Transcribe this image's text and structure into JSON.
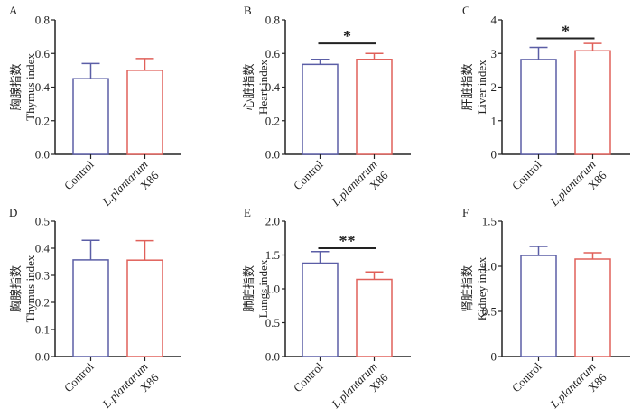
{
  "figure": {
    "colors": {
      "control": "#5b5ea6",
      "treatment": "#e0605a",
      "axis": "#222222",
      "sig_bar": "#222222"
    }
  },
  "chart_data": [
    {
      "panel": "A",
      "type": "bar",
      "ylabel_cn": "胸腺指数",
      "ylabel": "Thymus index",
      "categories": [
        "Control",
        "L.plantarum X86"
      ],
      "category_labels": [
        {
          "line1": "Control",
          "line2": ""
        },
        {
          "line1": "L.plantarum",
          "line2": "X86"
        }
      ],
      "values": [
        0.45,
        0.5
      ],
      "errors": [
        0.09,
        0.07
      ],
      "ylim": [
        0,
        0.8
      ],
      "yticks": [
        0.0,
        0.2,
        0.4,
        0.6,
        0.8
      ],
      "ytick_labels": [
        "0.0",
        "0.2",
        "0.4",
        "0.6",
        "0.8"
      ],
      "significance": null
    },
    {
      "panel": "B",
      "type": "bar",
      "ylabel_cn": "心脏指数",
      "ylabel": "Heart index",
      "categories": [
        "Control",
        "L.plantarum X86"
      ],
      "category_labels": [
        {
          "line1": "Control",
          "line2": ""
        },
        {
          "line1": "L.plantarum",
          "line2": "X86"
        }
      ],
      "values": [
        0.535,
        0.565
      ],
      "errors": [
        0.03,
        0.035
      ],
      "ylim": [
        0,
        0.8
      ],
      "yticks": [
        0.0,
        0.2,
        0.4,
        0.6,
        0.8
      ],
      "ytick_labels": [
        "0.0",
        "0.2",
        "0.4",
        "0.6",
        "0.8"
      ],
      "significance": {
        "label": "*",
        "y": 0.66
      }
    },
    {
      "panel": "C",
      "type": "bar",
      "ylabel_cn": "肝脏指数",
      "ylabel": "Liver index",
      "categories": [
        "Control",
        "L.plantarum X86"
      ],
      "category_labels": [
        {
          "line1": "Control",
          "line2": ""
        },
        {
          "line1": "L.plantarum",
          "line2": "X86"
        }
      ],
      "values": [
        2.82,
        3.08
      ],
      "errors": [
        0.36,
        0.22
      ],
      "ylim": [
        0,
        4
      ],
      "yticks": [
        0,
        1,
        2,
        3,
        4
      ],
      "ytick_labels": [
        "0",
        "1",
        "2",
        "3",
        "4"
      ],
      "significance": {
        "label": "*",
        "y": 3.45
      }
    },
    {
      "panel": "D",
      "type": "bar",
      "ylabel_cn": "胸腺指数",
      "ylabel": "Thymus index",
      "categories": [
        "Control",
        "L.plantarum X86"
      ],
      "category_labels": [
        {
          "line1": "Control",
          "line2": ""
        },
        {
          "line1": "L.plantarum",
          "line2": "X86"
        }
      ],
      "values": [
        0.357,
        0.356
      ],
      "errors": [
        0.072,
        0.072
      ],
      "ylim": [
        0,
        0.5
      ],
      "yticks": [
        0.0,
        0.1,
        0.2,
        0.3,
        0.4,
        0.5
      ],
      "ytick_labels": [
        "0.0",
        "0.1",
        "0.2",
        "0.3",
        "0.4",
        "0.5"
      ],
      "significance": null
    },
    {
      "panel": "E",
      "type": "bar",
      "ylabel_cn": "肺脏指数",
      "ylabel": "Lungs index",
      "categories": [
        "Control",
        "L.plantarum X86"
      ],
      "category_labels": [
        {
          "line1": "Control",
          "line2": ""
        },
        {
          "line1": "L.plantarum",
          "line2": "X86"
        }
      ],
      "values": [
        1.38,
        1.14
      ],
      "errors": [
        0.17,
        0.11
      ],
      "ylim": [
        0,
        2.0
      ],
      "yticks": [
        0.0,
        0.5,
        1.0,
        1.5,
        2.0
      ],
      "ytick_labels": [
        "0.0",
        "0.5",
        "1.0",
        "1.5",
        "2.0"
      ],
      "significance": {
        "label": "**",
        "y": 1.6
      }
    },
    {
      "panel": "F",
      "type": "bar",
      "ylabel_cn": "肾脏指数",
      "ylabel": "Kidney index",
      "categories": [
        "Control",
        "L.plantarum X86"
      ],
      "category_labels": [
        {
          "line1": "Control",
          "line2": ""
        },
        {
          "line1": "L.plantarum",
          "line2": "X86"
        }
      ],
      "values": [
        1.12,
        1.08
      ],
      "errors": [
        0.1,
        0.07
      ],
      "ylim": [
        0,
        1.5
      ],
      "yticks": [
        0,
        0.5,
        1.0,
        1.5
      ],
      "ytick_labels": [
        "0",
        "0.5",
        "1.0",
        "1.5"
      ],
      "significance": null
    }
  ]
}
